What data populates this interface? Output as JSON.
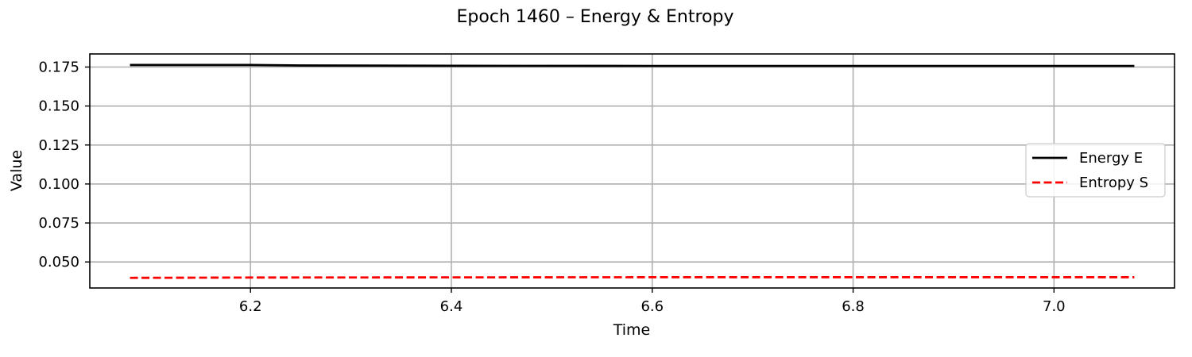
{
  "chart_data": {
    "type": "line",
    "title": "Epoch 1460 – Energy & Entropy",
    "xlabel": "Time",
    "ylabel": "Value",
    "xlim": [
      6.04,
      7.12
    ],
    "ylim": [
      0.0333,
      0.1834
    ],
    "xticks": [
      6.2,
      6.4,
      6.6,
      6.8,
      7.0
    ],
    "xtick_labels": [
      "6.2",
      "6.4",
      "6.6",
      "6.8",
      "7.0"
    ],
    "yticks": [
      0.05,
      0.075,
      0.1,
      0.125,
      0.15,
      0.175
    ],
    "ytick_labels": [
      "0.050",
      "0.075",
      "0.100",
      "0.125",
      "0.150",
      "0.175"
    ],
    "grid": true,
    "legend_position": "right",
    "series": [
      {
        "name": "Energy E",
        "color": "#000000",
        "style": "solid",
        "x": [
          6.08,
          6.2,
          6.25,
          6.4,
          6.6,
          6.8,
          7.0,
          7.08
        ],
        "y": [
          0.1763,
          0.1763,
          0.176,
          0.1758,
          0.1757,
          0.1757,
          0.1757,
          0.1757
        ]
      },
      {
        "name": "Entropy S",
        "color": "#ff0000",
        "style": "dashed",
        "x": [
          6.08,
          6.2,
          6.4,
          6.6,
          6.8,
          7.0,
          7.08
        ],
        "y": [
          0.0398,
          0.04,
          0.0401,
          0.0402,
          0.0402,
          0.0402,
          0.0402
        ]
      }
    ]
  }
}
